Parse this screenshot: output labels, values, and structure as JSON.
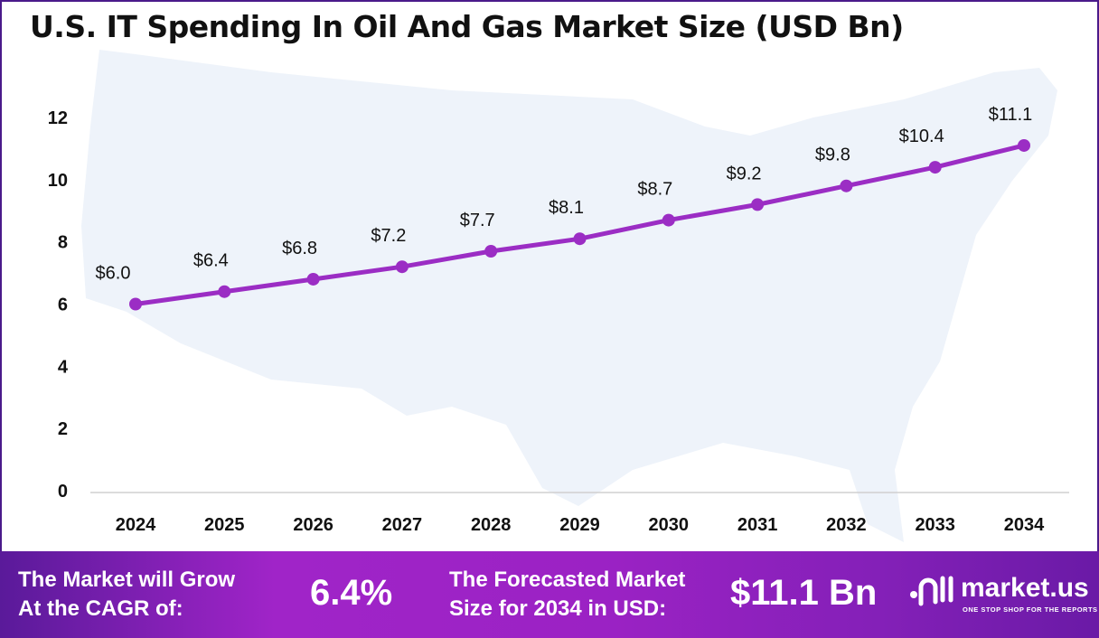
{
  "chart_data": {
    "type": "line",
    "title": "U.S. IT Spending In Oil And Gas Market Size (USD Bn)",
    "categories": [
      "2024",
      "2025",
      "2026",
      "2027",
      "2028",
      "2029",
      "2030",
      "2031",
      "2032",
      "2033",
      "2034"
    ],
    "values": [
      6.0,
      6.4,
      6.8,
      7.2,
      7.7,
      8.1,
      8.7,
      9.2,
      9.8,
      10.4,
      11.1
    ],
    "data_labels": [
      "$6.0",
      "$6.4",
      "$6.8",
      "$7.2",
      "$7.7",
      "$8.1",
      "$8.7",
      "$9.2",
      "$9.8",
      "$10.4",
      "$11.1"
    ],
    "yticks": [
      0,
      2,
      4,
      6,
      8,
      10,
      12
    ],
    "ylim": [
      0,
      12
    ],
    "xlabel": "",
    "ylabel": "",
    "grid": false,
    "line_color": "#9b2dc4"
  },
  "banner": {
    "cagr_label_1": "The Market will Grow",
    "cagr_label_2": "At the CAGR of:",
    "cagr_value": "6.4%",
    "forecast_label_1": "The Forecasted Market",
    "forecast_label_2": "Size for 2034 in USD:",
    "forecast_value": "$11.1 Bn",
    "logo_name": "market.us",
    "logo_tagline": "ONE STOP SHOP FOR THE REPORTS"
  }
}
